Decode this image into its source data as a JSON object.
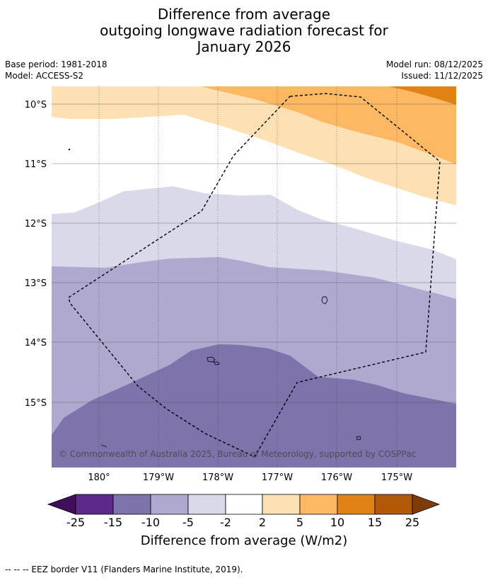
{
  "title": {
    "line1": "Difference from average",
    "line2": "outgoing longwave radiation forecast for",
    "line3": "January 2026"
  },
  "info": {
    "base_period": "Base period: 1981-2018",
    "model": "Model: ACCESS-S2",
    "model_run": "Model run: 08/12/2025",
    "issued": "Issued: 11/12/2025"
  },
  "map": {
    "lat_labels": [
      "10°S",
      "11°S",
      "12°S",
      "13°S",
      "14°S",
      "15°S"
    ],
    "lon_labels": [
      "180°",
      "179°W",
      "178°W",
      "177°W",
      "176°W",
      "175°W"
    ],
    "copyright": "© Commonwealth of Australia 2025, Bureau of Meteorology, supported by COSPPac"
  },
  "colorbar": {
    "ticks": [
      "-25",
      "-15",
      "-10",
      "-5",
      "-2",
      "2",
      "5",
      "10",
      "15",
      "25"
    ],
    "colors": [
      "#3f0f5a",
      "#5c2a8a",
      "#7f73ab",
      "#b0a9cf",
      "#d9d9ea",
      "#ffffff",
      "#fde0b4",
      "#fdb863",
      "#e08214",
      "#b35806",
      "#7f3b08"
    ],
    "label": "Difference from average (W/m2)"
  },
  "footer": "-- -- -- EEZ border V11 (Flanders Marine Institute, 2019)."
}
